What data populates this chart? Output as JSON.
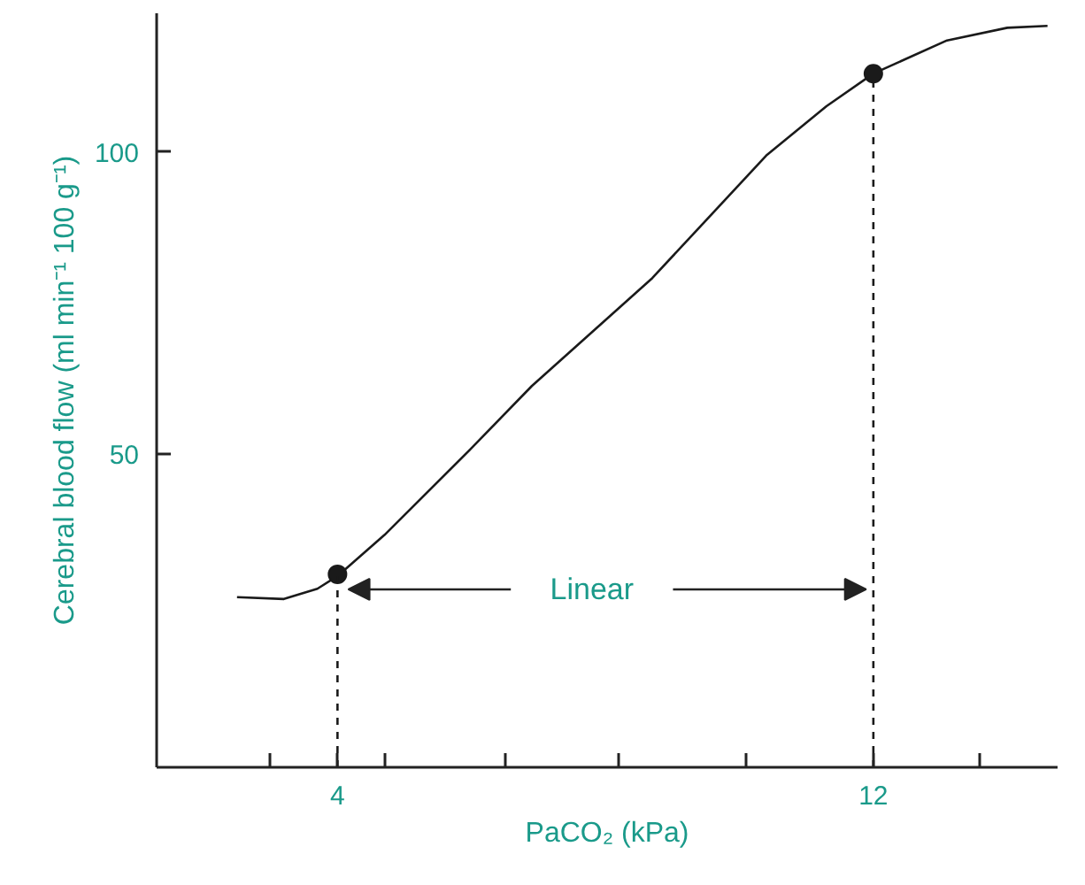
{
  "chart_data": {
    "type": "line",
    "xlabel": "PaCO₂ (kPa)",
    "ylabel": "Cerebral blood flow (ml min⁻¹ 100 g⁻¹)",
    "xlim": [
      1.3,
      14.75
    ],
    "ylim": [
      -2,
      123
    ],
    "xticks": [
      {
        "value": 3,
        "label": null
      },
      4,
      {
        "value": 4.7,
        "label": null
      },
      {
        "value": 6.5,
        "label": null
      },
      {
        "value": 8.2,
        "label": null
      },
      {
        "value": 10.1,
        "label": null
      },
      12,
      {
        "value": 13.6,
        "label": null
      }
    ],
    "yticks": [
      50,
      100
    ],
    "grid": false,
    "series": [
      {
        "color": "#1a1a1a",
        "marker": "none",
        "line_style": "solid",
        "x": [
          2.5,
          3.2,
          3.7,
          4.0,
          4.7,
          6.0,
          6.9,
          8.7,
          10.4,
          11.3,
          12.0,
          13.1,
          14.0,
          14.6
        ],
        "values": [
          26.2,
          25.9,
          27.6,
          29.7,
          36.5,
          50.9,
          61.2,
          79.1,
          99.4,
          107.6,
          113,
          118.5,
          120.6,
          120.9
        ]
      },
      {
        "type": "scatter",
        "color": "#1a1a1a",
        "marker": "circle",
        "x": [
          4,
          12
        ],
        "values": [
          30,
          113
        ]
      }
    ],
    "ref_lines": [
      {
        "axis": "x",
        "value": 4,
        "color": "#1a1a1a",
        "line_style": "dashed"
      },
      {
        "axis": "x",
        "value": 12,
        "color": "#1a1a1a",
        "line_style": "dashed"
      }
    ],
    "annotations": [
      "Linear"
    ]
  }
}
